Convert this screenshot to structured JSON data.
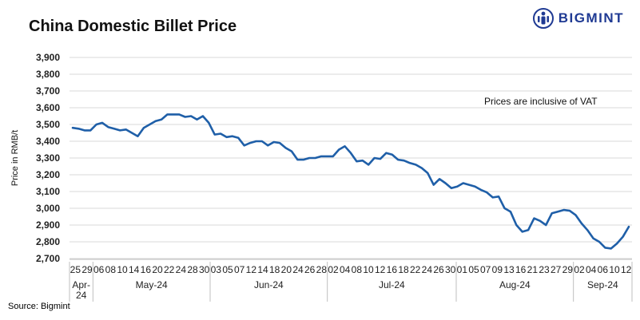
{
  "header": {
    "title": "China Domestic Billet Price",
    "brand": "BIGMINT"
  },
  "footer": {
    "source": "Source: Bigmint"
  },
  "colors": {
    "line": "#1f5fa8",
    "grid": "#d9d9d9",
    "brand": "#1f3a93"
  },
  "chart_data": {
    "type": "line",
    "title": "China Domestic Billet Price",
    "xlabel": "",
    "ylabel": "Price in RMB/t",
    "ylim": [
      2700,
      3900
    ],
    "yticks": [
      2700,
      2800,
      2900,
      3000,
      3100,
      3200,
      3300,
      3400,
      3500,
      3600,
      3700,
      3800,
      3900
    ],
    "ytick_labels": [
      "2,700",
      "2,800",
      "2,900",
      "3,000",
      "3,100",
      "3,200",
      "3,300",
      "3,400",
      "3,500",
      "3,600",
      "3,700",
      "3,800",
      "3,900"
    ],
    "grid": true,
    "annotation": "Prices are inclusive of VAT",
    "tick_labels": [
      "25",
      "29",
      "06",
      "08",
      "10",
      "14",
      "16",
      "20",
      "22",
      "24",
      "28",
      "30",
      "03",
      "05",
      "07",
      "12",
      "14",
      "18",
      "20",
      "24",
      "26",
      "28",
      "02",
      "04",
      "08",
      "10",
      "12",
      "16",
      "18",
      "22",
      "24",
      "26",
      "30",
      "01",
      "05",
      "07",
      "09",
      "13",
      "16",
      "21",
      "23",
      "27",
      "29",
      "02",
      "04",
      "06",
      "10",
      "12"
    ],
    "months": [
      {
        "label": "Apr-24",
        "lines": [
          "Apr-",
          "24"
        ]
      },
      {
        "label": "May-24",
        "lines": [
          "May-24"
        ]
      },
      {
        "label": "Jun-24",
        "lines": [
          "Jun-24"
        ]
      },
      {
        "label": "Jul-24",
        "lines": [
          "Jul-24"
        ]
      },
      {
        "label": "Aug-24",
        "lines": [
          "Aug-24"
        ]
      },
      {
        "label": "Sep-24",
        "lines": [
          "Sep-24"
        ]
      }
    ],
    "series": [
      {
        "values": [
          3480,
          3475,
          3465,
          3465,
          3500,
          3510,
          3485,
          3475,
          3465,
          3470,
          3450,
          3430,
          3480,
          3500,
          3520,
          3530,
          3560,
          3560,
          3560,
          3545,
          3550,
          3530,
          3550,
          3510,
          3440,
          3445,
          3425,
          3430,
          3420,
          3375,
          3390,
          3400,
          3400,
          3375,
          3395,
          3390,
          3360,
          3340,
          3290,
          3290,
          3300,
          3300,
          3310,
          3310,
          3310,
          3350,
          3370,
          3330,
          3280,
          3285,
          3260,
          3300,
          3295,
          3330,
          3320,
          3290,
          3285,
          3270,
          3260,
          3240,
          3210,
          3140,
          3175,
          3150,
          3120,
          3130,
          3150,
          3140,
          3130,
          3110,
          3095,
          3065,
          3070,
          3000,
          2980,
          2900,
          2860,
          2870,
          2940,
          2925,
          2900,
          2970,
          2980,
          2990,
          2985,
          2960,
          2910,
          2870,
          2820,
          2800,
          2765,
          2760,
          2790,
          2830,
          2890
        ]
      }
    ]
  }
}
